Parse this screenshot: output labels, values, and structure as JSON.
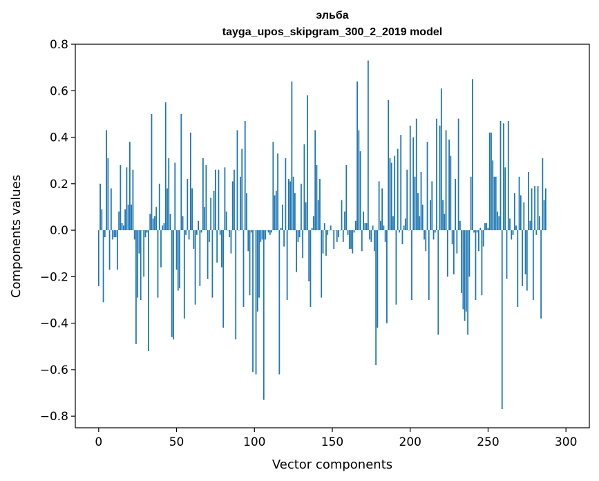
{
  "chart_data": {
    "type": "bar",
    "title": "эльба",
    "subtitle": "tayga_upos_skipgram_300_2_2019 model",
    "xlabel": "Vector components",
    "ylabel": "Components values",
    "xlim": [
      -15,
      315
    ],
    "ylim": [
      -0.85,
      0.8
    ],
    "xticks": [
      0,
      50,
      100,
      150,
      200,
      250,
      300
    ],
    "yticks": [
      -0.8,
      -0.6,
      -0.4,
      -0.2,
      0.0,
      0.2,
      0.4,
      0.6,
      0.8
    ],
    "xtick_labels": [
      "0",
      "50",
      "100",
      "150",
      "200",
      "250",
      "300"
    ],
    "ytick_labels": [
      "−0.8",
      "−0.6",
      "−0.4",
      "−0.2",
      "0.0",
      "0.2",
      "0.4",
      "0.6",
      "0.8"
    ],
    "bar_color": "#1f77b4",
    "grid": false,
    "values": [
      -0.24,
      0.2,
      0.09,
      -0.31,
      -0.03,
      0.43,
      0.31,
      -0.17,
      0.18,
      -0.04,
      -0.03,
      -0.03,
      -0.17,
      0.08,
      0.28,
      0.03,
      0.02,
      0.09,
      0.27,
      0.11,
      0.38,
      0.11,
      0.26,
      -0.04,
      -0.49,
      -0.29,
      -0.1,
      -0.3,
      0.0,
      -0.2,
      -0.03,
      -0.01,
      -0.52,
      0.07,
      0.5,
      0.05,
      0.06,
      0.1,
      -0.29,
      0.2,
      -0.16,
      0.02,
      0.03,
      0.55,
      0.18,
      0.31,
      0.07,
      -0.46,
      -0.47,
      0.29,
      -0.17,
      -0.26,
      -0.25,
      0.5,
      0.06,
      -0.38,
      -0.02,
      0.22,
      -0.04,
      0.42,
      0.18,
      -0.08,
      -0.32,
      -0.02,
      0.04,
      -0.24,
      -0.01,
      0.31,
      0.1,
      0.28,
      -0.21,
      -0.05,
      0.14,
      -0.29,
      0.17,
      0.26,
      -0.14,
      0.26,
      -0.02,
      -0.16,
      -0.42,
      0.27,
      0.08,
      0.0,
      -0.03,
      -0.1,
      0.21,
      0.26,
      -0.47,
      0.43,
      0.0,
      0.23,
      0.35,
      -0.33,
      0.47,
      0.16,
      -0.09,
      -0.28,
      -0.01,
      -0.61,
      0.0,
      -0.62,
      -0.35,
      -0.29,
      -0.05,
      -0.04,
      -0.73,
      -0.04,
      -0.0,
      -0.01,
      -0.02,
      -0.01,
      0.38,
      0.15,
      0.17,
      0.33,
      -0.62,
      0.01,
      0.11,
      -0.07,
      0.31,
      -0.3,
      0.22,
      0.21,
      0.64,
      0.23,
      0.16,
      -0.18,
      -0.05,
      -0.03,
      0.2,
      -0.12,
      0.37,
      0.12,
      0.58,
      -0.22,
      -0.33,
      0.01,
      0.06,
      0.43,
      0.28,
      0.13,
      0.22,
      -0.29,
      -0.1,
      0.03,
      -0.11,
      -0.02,
      0.0,
      0.02,
      0.0,
      -0.08,
      0.0,
      -0.05,
      -0.03,
      0.0,
      0.13,
      -0.05,
      0.08,
      0.28,
      -0.02,
      -0.08,
      -0.08,
      -0.1,
      -0.01,
      0.04,
      0.64,
      0.43,
      0.34,
      -0.09,
      0.08,
      0.03,
      0.03,
      0.73,
      -0.04,
      -0.05,
      0.02,
      -0.09,
      -0.58,
      -0.42,
      0.21,
      0.04,
      0.18,
      0.02,
      -0.05,
      -0.4,
      0.56,
      0.31,
      0.29,
      0.06,
      0.32,
      -0.32,
      0.35,
      -0.01,
      0.41,
      -0.06,
      0.02,
      0.05,
      0.26,
      0.0,
      0.45,
      -0.3,
      0.4,
      0.23,
      0.48,
      0.16,
      0.06,
      0.25,
      0.11,
      -0.04,
      -0.09,
      0.38,
      -0.3,
      0.13,
      0.21,
      -0.04,
      -0.01,
      0.48,
      -0.45,
      0.45,
      0.61,
      0.13,
      0.07,
      0.43,
      -0.2,
      0.39,
      0.32,
      -0.06,
      -0.19,
      0.22,
      -0.1,
      0.48,
      0.04,
      -0.27,
      -0.34,
      -0.39,
      -0.35,
      -0.45,
      -0.2,
      0.23,
      0.65,
      -0.01,
      -0.3,
      -0.01,
      -0.09,
      0.01,
      -0.28,
      -0.07,
      0.03,
      0.03,
      0.01,
      0.42,
      0.42,
      0.3,
      0.23,
      0.23,
      0.08,
      0.06,
      0.47,
      -0.77,
      0.46,
      0.27,
      -0.21,
      0.47,
      0.05,
      -0.04,
      -0.02,
      0.16,
      0.02,
      -0.33,
      0.23,
      0.15,
      -0.24,
      0.12,
      -0.19,
      -0.26,
      0.25,
      0.04,
      0.18,
      -0.3,
      0.19,
      -0.02,
      0.19,
      0.06,
      -0.38,
      0.31,
      0.13,
      0.18
    ]
  }
}
